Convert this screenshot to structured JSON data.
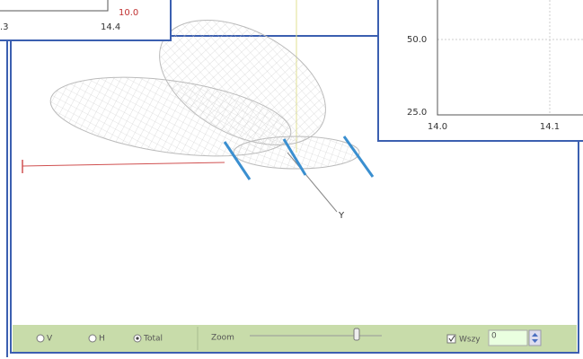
{
  "left_inset": {
    "x_labels": [
      ".3",
      "14.4"
    ],
    "marker_label": "10.0"
  },
  "right_inset": {
    "y_labels": [
      "50.0",
      "25.0"
    ],
    "x_labels": [
      "14.0",
      "14.1"
    ]
  },
  "view3d": {
    "axis_label": "Y"
  },
  "toolbar": {
    "radios": [
      "V",
      "H",
      "Total"
    ],
    "zoom_label": "Zoom",
    "checkbox_label": "Wszy",
    "input_value": "0"
  }
}
